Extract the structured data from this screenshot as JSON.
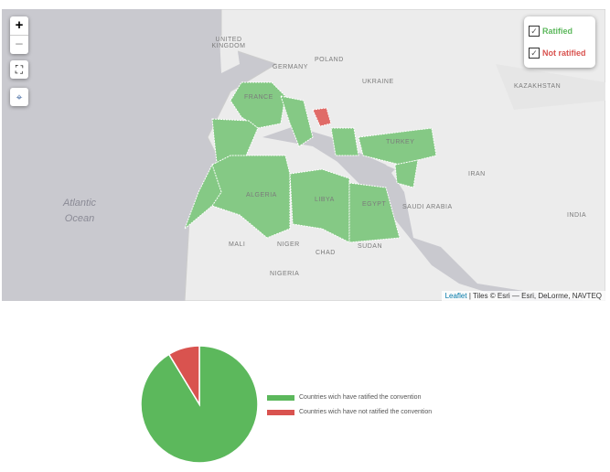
{
  "map": {
    "zoom_in": "+",
    "zoom_out": "−",
    "controls": [
      "fullscreen-icon",
      "locate-icon"
    ],
    "labels": {
      "uk": "UNITED KINGDOM",
      "germany": "GERMANY",
      "poland": "POLAND",
      "ukraine": "UKRAINE",
      "kazakhstan": "KAZAKHSTAN",
      "france": "FRANCE",
      "turkey": "TURKEY",
      "iran": "IRAN",
      "algeria": "ALGERIA",
      "libya": "LIBYA",
      "egypt": "EGYPT",
      "saudi": "SAUDI ARABIA",
      "india": "INDIA",
      "mali": "MALI",
      "niger": "NIGER",
      "chad": "CHAD",
      "sudan": "SUDAN",
      "nigeria": "NIGERIA",
      "ocean1": "Atlantic",
      "ocean2": "Ocean"
    },
    "legend": [
      {
        "label": "Ratified",
        "color": "#5cb85c",
        "checked": true
      },
      {
        "label": "Not ratified",
        "color": "#d9534f",
        "checked": true
      }
    ],
    "attribution": {
      "link": "Leaflet",
      "text": " | Tiles © Esri — Esri, DeLorme, NAVTEQ"
    }
  },
  "chart_data": {
    "type": "pie",
    "slices": [
      {
        "name": "Countries wich have ratified the convention",
        "value": 21,
        "color": "#5cb85c"
      },
      {
        "name": "Countries wich have not ratified the convention",
        "value": 2,
        "color": "#d9534f"
      }
    ],
    "legend_placement": "right"
  }
}
